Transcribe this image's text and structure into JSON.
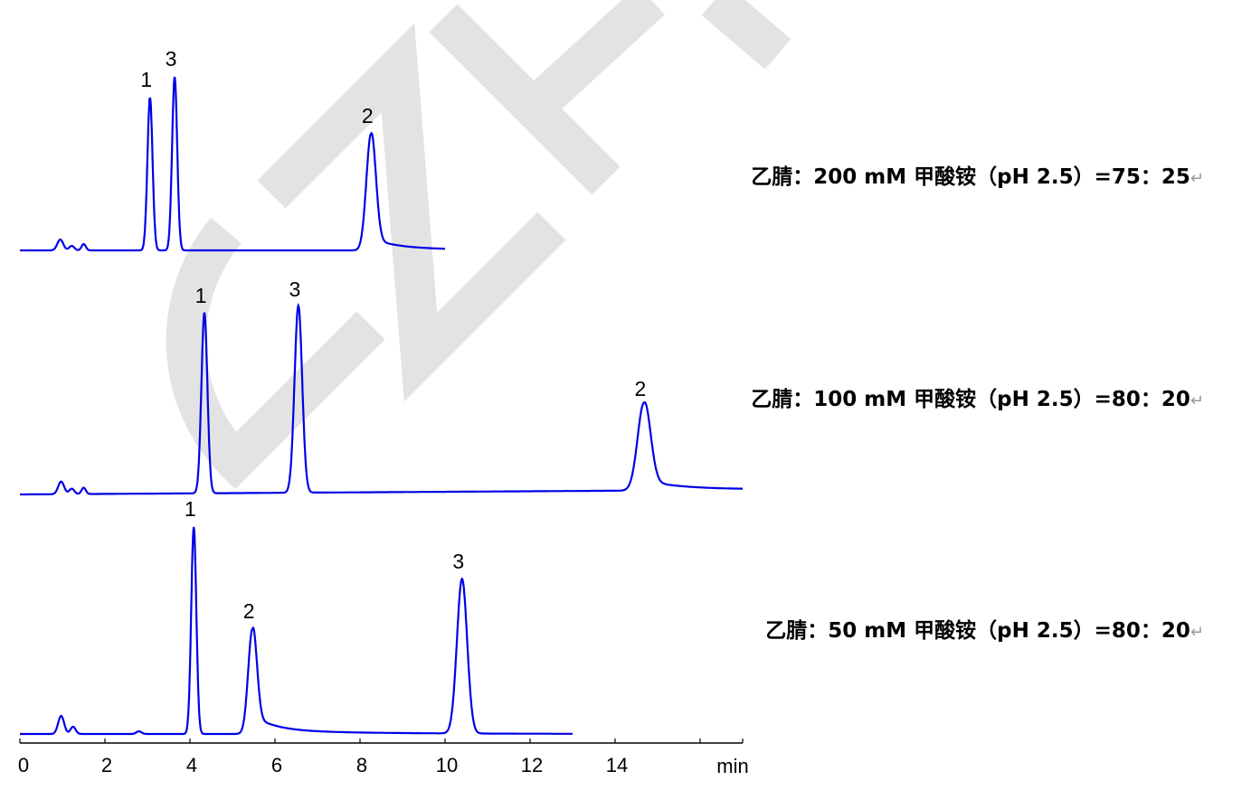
{
  "watermark": "GZF",
  "chart_data": {
    "type": "line",
    "title": "",
    "xlabel": "min",
    "ylabel": "",
    "xlim": [
      0,
      17
    ],
    "xticks": [
      0,
      2,
      4,
      6,
      8,
      10,
      12,
      14,
      16
    ],
    "xtick_labels": [
      "0",
      "2",
      "4",
      "6",
      "8",
      "10",
      "12",
      "14",
      ""
    ],
    "grid": false,
    "line_color": "#0000e6",
    "y_units": "relative intensity (arbitrary)",
    "series": [
      {
        "condition": "乙腈：200 mM 甲酸铵（pH 2.5）=75：25",
        "end_time": 10.0,
        "peaks": [
          {
            "label": "",
            "rt": 0.95,
            "height": 12,
            "sigma": 0.07,
            "tail": 0
          },
          {
            "label": "",
            "rt": 1.22,
            "height": 5,
            "sigma": 0.06,
            "tail": 0
          },
          {
            "label": "",
            "rt": 1.5,
            "height": 7,
            "sigma": 0.05,
            "tail": 0
          },
          {
            "label": "1",
            "rt": 3.06,
            "height": 169,
            "sigma": 0.06,
            "tail": 0
          },
          {
            "label": "3",
            "rt": 3.64,
            "height": 192,
            "sigma": 0.06,
            "tail": 0
          },
          {
            "label": "2",
            "rt": 8.26,
            "height": 129,
            "sigma": 0.11,
            "tail": 0.35
          }
        ]
      },
      {
        "condition": "乙腈：100 mM 甲酸铵（pH 2.5）=80：20",
        "end_time": 17.0,
        "peaks": [
          {
            "label": "",
            "rt": 0.97,
            "height": 14,
            "sigma": 0.07,
            "tail": 0
          },
          {
            "label": "",
            "rt": 1.22,
            "height": 6,
            "sigma": 0.06,
            "tail": 0
          },
          {
            "label": "",
            "rt": 1.5,
            "height": 7,
            "sigma": 0.05,
            "tail": 0
          },
          {
            "label": "1",
            "rt": 4.34,
            "height": 200,
            "sigma": 0.07,
            "tail": 0
          },
          {
            "label": "3",
            "rt": 6.55,
            "height": 207,
            "sigma": 0.09,
            "tail": 0
          },
          {
            "label": "2",
            "rt": 14.68,
            "height": 97,
            "sigma": 0.15,
            "tail": 0.4
          }
        ]
      },
      {
        "condition": "乙腈：50 mM 甲酸铵（pH 2.5）=80：20",
        "end_time": 13.0,
        "peaks": [
          {
            "label": "",
            "rt": 0.97,
            "height": 20,
            "sigma": 0.07,
            "tail": 0
          },
          {
            "label": "",
            "rt": 1.25,
            "height": 8,
            "sigma": 0.06,
            "tail": 0
          },
          {
            "label": "",
            "rt": 2.8,
            "height": 3,
            "sigma": 0.06,
            "tail": 0
          },
          {
            "label": "1",
            "rt": 4.09,
            "height": 229,
            "sigma": 0.06,
            "tail": 0
          },
          {
            "label": "2",
            "rt": 5.47,
            "height": 116,
            "sigma": 0.1,
            "tail": 0.6
          },
          {
            "label": "3",
            "rt": 10.4,
            "height": 171,
            "sigma": 0.12,
            "tail": 0
          }
        ]
      }
    ]
  }
}
